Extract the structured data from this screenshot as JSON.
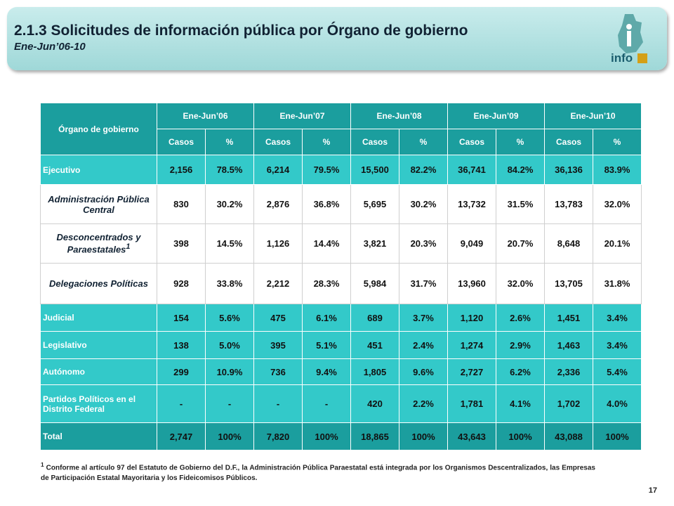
{
  "header": {
    "title": "2.1.3 Solicitudes de información pública por Órgano de gobierno",
    "subtitle": "Ene-Jun’06-10",
    "logo": "info"
  },
  "table": {
    "corner": "Órgano de gobierno",
    "periods": [
      "Ene-Jun’06",
      "Ene-Jun’07",
      "Ene-Jun’08",
      "Ene-Jun’09",
      "Ene-Jun’10"
    ],
    "subheaders": [
      "Casos",
      "%",
      "Casos",
      "%",
      "Casos",
      "%",
      "Casos",
      "%",
      "Casos",
      "%"
    ],
    "rows": [
      {
        "label": "Ejecutivo",
        "cells": [
          "2,156",
          "78.5%",
          "6,214",
          "79.5%",
          "15,500",
          "82.2%",
          "36,741",
          "84.2%",
          "36,136",
          "83.9%"
        ]
      },
      {
        "label": "Administración Pública Central",
        "cells": [
          "830",
          "30.2%",
          "2,876",
          "36.8%",
          "5,695",
          "30.2%",
          "13,732",
          "31.5%",
          "13,783",
          "32.0%"
        ]
      },
      {
        "label": "Desconcentrados y Paraestatales",
        "note": "1",
        "cells": [
          "398",
          "14.5%",
          "1,126",
          "14.4%",
          "3,821",
          "20.3%",
          "9,049",
          "20.7%",
          "8,648",
          "20.1%"
        ]
      },
      {
        "label": "Delegaciones Políticas",
        "cells": [
          "928",
          "33.8%",
          "2,212",
          "28.3%",
          "5,984",
          "31.7%",
          "13,960",
          "32.0%",
          "13,705",
          "31.8%"
        ]
      },
      {
        "label": "Judicial",
        "cells": [
          "154",
          "5.6%",
          "475",
          "6.1%",
          "689",
          "3.7%",
          "1,120",
          "2.6%",
          "1,451",
          "3.4%"
        ]
      },
      {
        "label": "Legislativo",
        "cells": [
          "138",
          "5.0%",
          "395",
          "5.1%",
          "451",
          "2.4%",
          "1,274",
          "2.9%",
          "1,463",
          "3.4%"
        ]
      },
      {
        "label": "Autónomo",
        "cells": [
          "299",
          "10.9%",
          "736",
          "9.4%",
          "1,805",
          "9.6%",
          "2,727",
          "6.2%",
          "2,336",
          "5.4%"
        ]
      },
      {
        "label": "Partidos Políticos en el Distrito Federal",
        "cells": [
          "-",
          "-",
          "-",
          "-",
          "420",
          "2.2%",
          "1,781",
          "4.1%",
          "1,702",
          "4.0%"
        ]
      },
      {
        "label": "Total",
        "cells": [
          "2,747",
          "100%",
          "7,820",
          "100%",
          "18,865",
          "100%",
          "43,643",
          "100%",
          "43,088",
          "100%"
        ]
      }
    ]
  },
  "footnote": {
    "note": "1",
    "text": "Conforme al artículo 97 del Estatuto de Gobierno del D.F., la Administración Pública Paraestatal está integrada por los Organismos Descentralizados, las Empresas de Participación Estatal Mayoritaria y los Fideicomisos Públicos."
  },
  "page_number": "17"
}
